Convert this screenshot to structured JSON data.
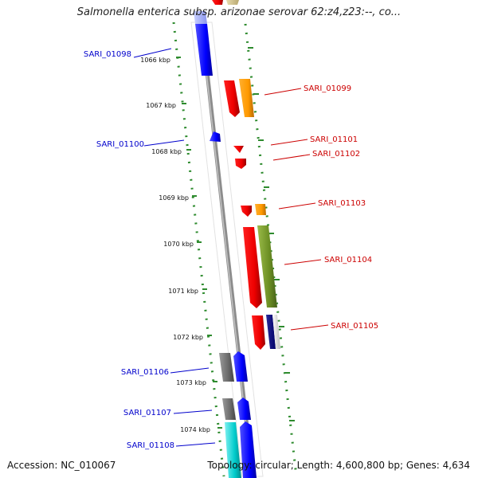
{
  "title": "Salmonella enterica subsp. arizonae serovar 62:z4,z23:--, co...",
  "accession": "Accession: NC_010067",
  "topology": "Topology: circular; Length: 4,600,800 bp; Genes: 4,634",
  "colors": {
    "axis_tick": "#2e8b2e",
    "backbone": "#8c8c8c",
    "plus_label": "#cc0000",
    "minus_label": "#0000cc"
  },
  "ticks": [
    {
      "label": "1066 kbp"
    },
    {
      "label": "1067 kbp"
    },
    {
      "label": "1068 kbp"
    },
    {
      "label": "1069 kbp"
    },
    {
      "label": "1070 kbp"
    },
    {
      "label": "1071 kbp"
    },
    {
      "label": "1072 kbp"
    },
    {
      "label": "1073 kbp"
    },
    {
      "label": "1074 kbp"
    }
  ],
  "genes": [
    {
      "label": "SARI_01098",
      "strand": "-"
    },
    {
      "label": "SARI_01099",
      "strand": "+"
    },
    {
      "label": "SARI_01100",
      "strand": "-"
    },
    {
      "label": "SARI_01101",
      "strand": "+"
    },
    {
      "label": "SARI_01102",
      "strand": "+"
    },
    {
      "label": "SARI_01103",
      "strand": "+"
    },
    {
      "label": "SARI_01104",
      "strand": "+"
    },
    {
      "label": "SARI_01105",
      "strand": "+"
    },
    {
      "label": "SARI_01106",
      "strand": "-"
    },
    {
      "label": "SARI_01107",
      "strand": "-"
    },
    {
      "label": "SARI_01108",
      "strand": "-"
    }
  ]
}
